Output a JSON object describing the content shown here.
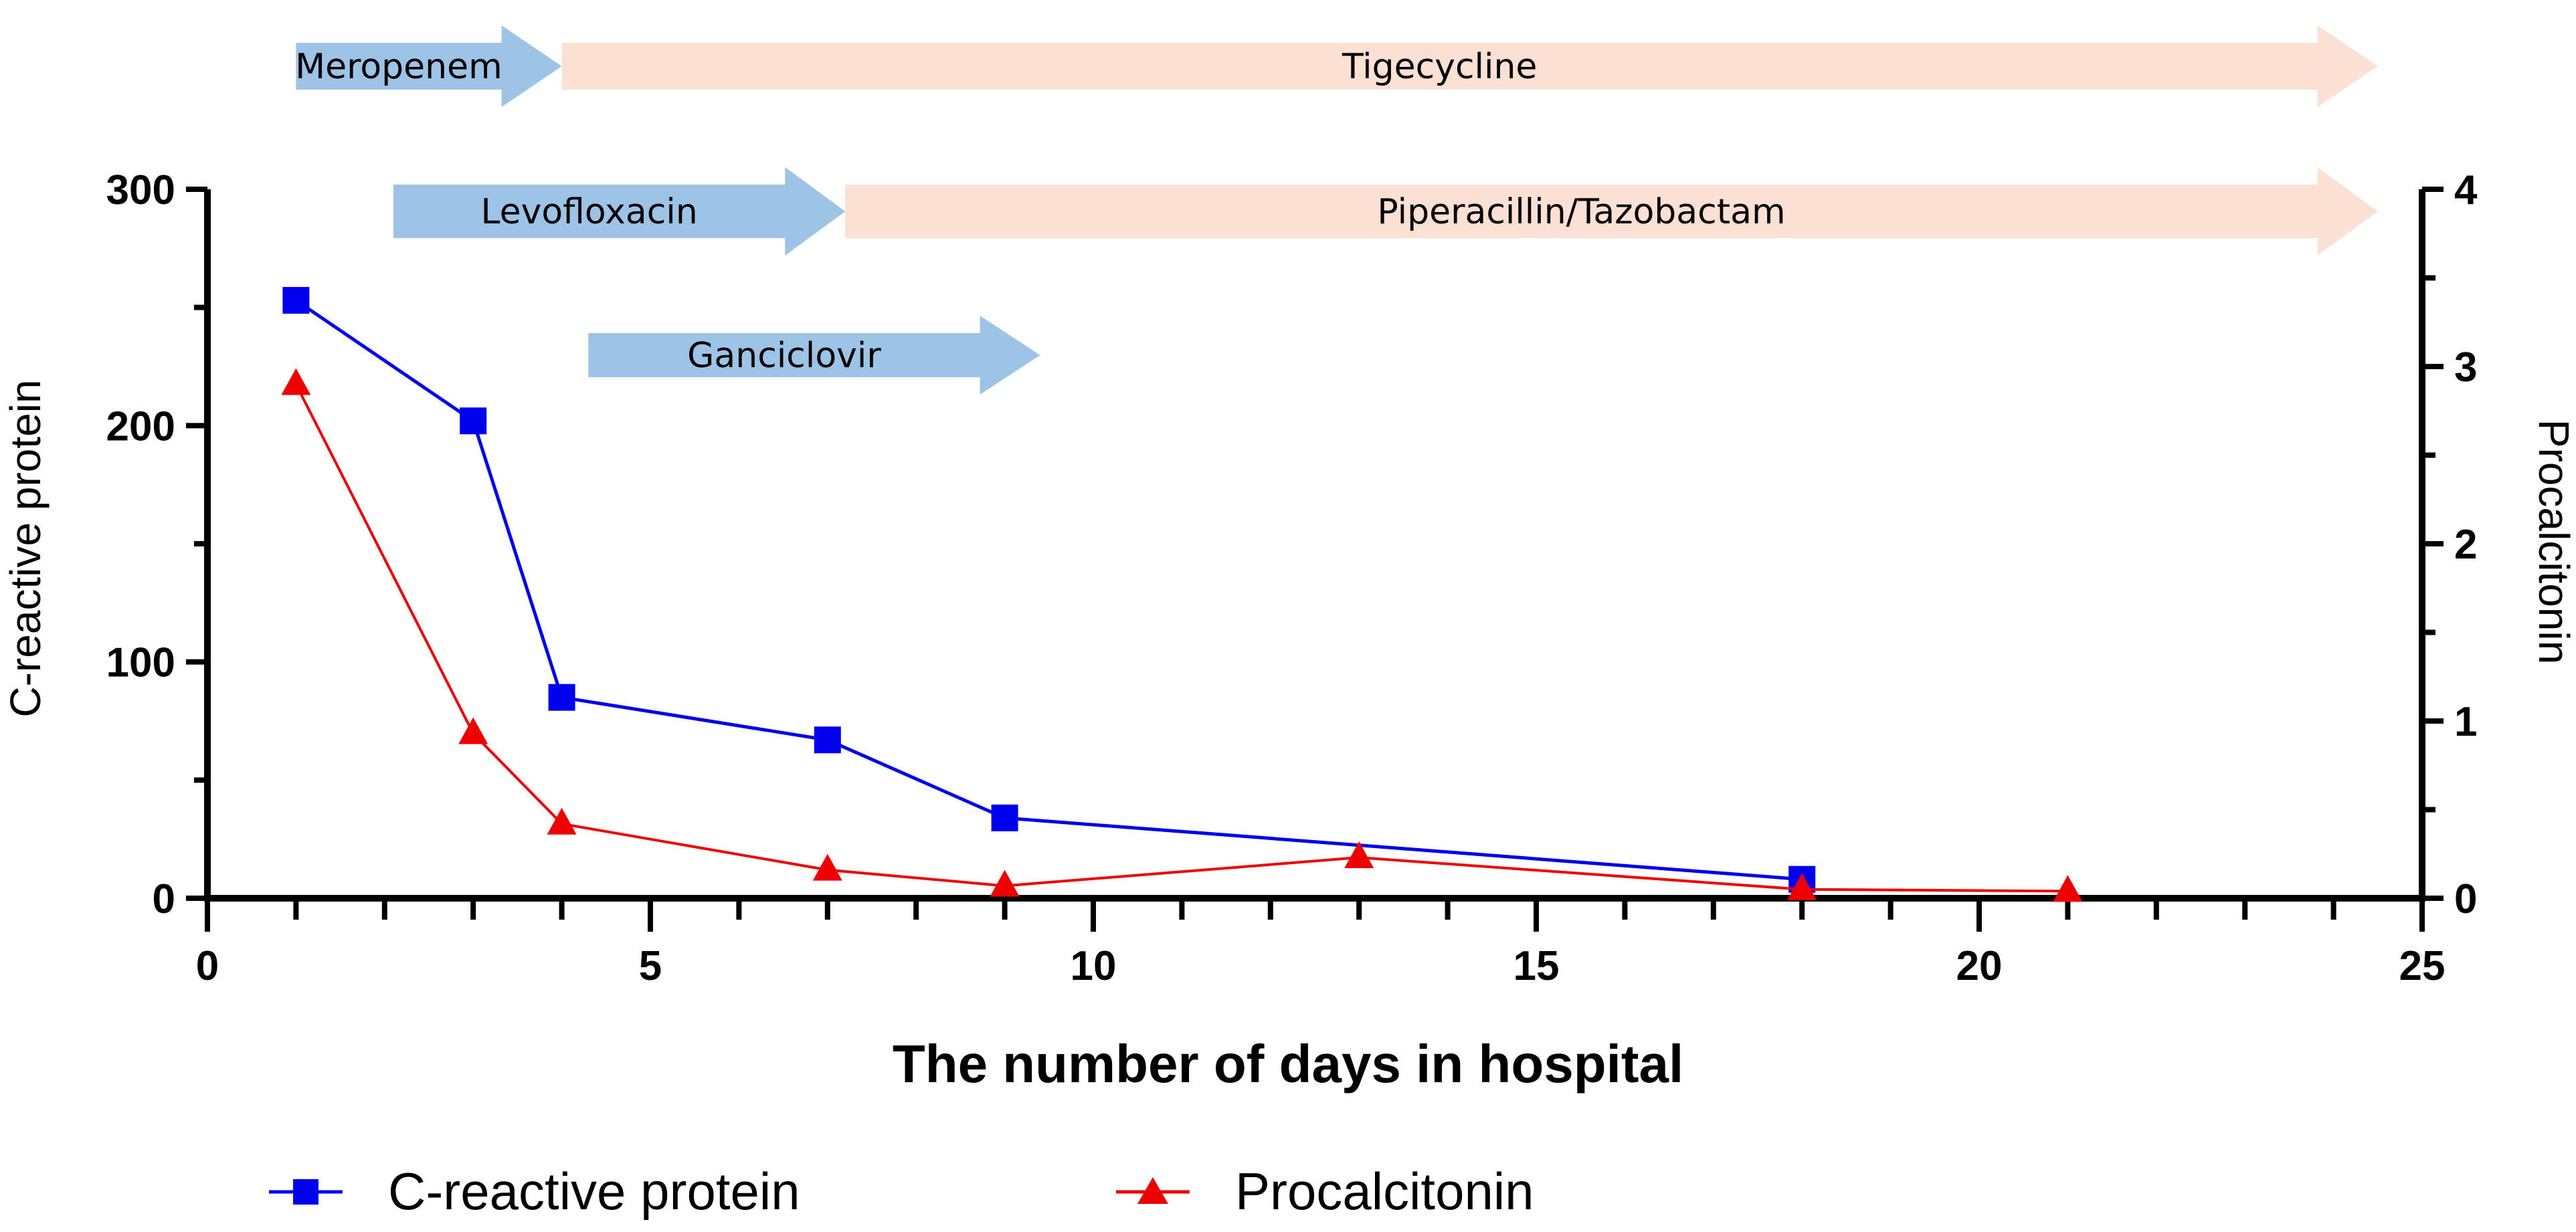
{
  "chart_data": {
    "type": "line",
    "title": "",
    "xlabel": "The number of days in hospital",
    "ylabel_left": "C-reactive protein",
    "ylabel_right": "Procalcitonin",
    "xlim": [
      0,
      25
    ],
    "ylim_left": [
      0,
      300
    ],
    "ylim_right": [
      0,
      4
    ],
    "x_major_ticks": [
      0,
      5,
      10,
      15,
      20,
      25
    ],
    "x_tick_labels": [
      "0",
      "5",
      "10",
      "15",
      "20",
      "25"
    ],
    "y_left_ticks": [
      0,
      100,
      200,
      300
    ],
    "y_left_tick_labels": [
      "0",
      "100",
      "200",
      "300"
    ],
    "y_right_ticks": [
      0,
      1,
      2,
      3,
      4
    ],
    "y_right_tick_labels": [
      "0",
      "1",
      "2",
      "3",
      "4"
    ],
    "grid": false,
    "legend_position": "bottom",
    "series": [
      {
        "name": "C-reactive protein",
        "axis": "left",
        "marker": "square",
        "color": "#0000ee",
        "x": [
          1,
          3,
          4,
          7,
          9,
          18
        ],
        "values": [
          253,
          202,
          85,
          67,
          34,
          8
        ]
      },
      {
        "name": "Procalcitonin",
        "axis": "right",
        "marker": "triangle",
        "color": "#ee0000",
        "x": [
          1,
          3,
          4,
          7,
          9,
          13,
          18,
          21
        ],
        "values": [
          2.9,
          0.93,
          0.42,
          0.16,
          0.07,
          0.23,
          0.05,
          0.04
        ]
      }
    ],
    "treatments": [
      {
        "name": "Meropenem",
        "start_day": 1,
        "end_day": 4,
        "row": 1,
        "color": "#9dc3e6"
      },
      {
        "name": "Tigecycline",
        "start_day": 4,
        "end_day": 24.5,
        "row": 1,
        "color": "#fbe0d3"
      },
      {
        "name": "Levofloxacin",
        "start_day": 2.1,
        "end_day": 7.2,
        "row": 2,
        "color": "#9dc3e6"
      },
      {
        "name": "Piperacillin/Tazobactam",
        "start_day": 7.2,
        "end_day": 24.5,
        "row": 2,
        "color": "#fbe0d3"
      },
      {
        "name": "Ganciclovir",
        "start_day": 4.3,
        "end_day": 9.4,
        "row": 3,
        "color": "#9dc3e6"
      }
    ]
  }
}
